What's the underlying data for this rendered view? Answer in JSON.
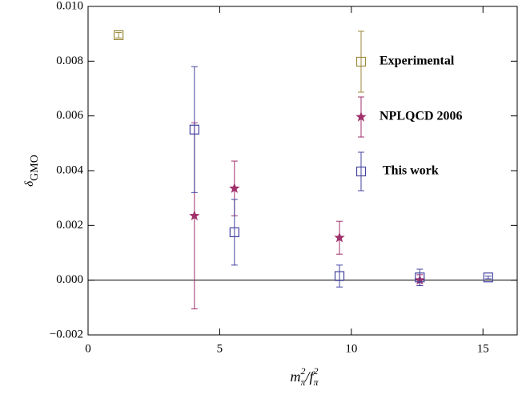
{
  "chart_data": {
    "type": "scatter",
    "xlabel": {
      "m": "m",
      "m_sup": "2",
      "m_sub": "π",
      "slash": "/",
      "f": "f",
      "f_sup": "2",
      "f_sub": "π"
    },
    "ylabel": {
      "symbol": "δ",
      "subscript": "GMO"
    },
    "xlim": [
      0,
      16.3
    ],
    "ylim": [
      -0.002,
      0.01
    ],
    "xticks": [
      0,
      5,
      10,
      15
    ],
    "yticks": [
      {
        "value": -0.002,
        "label": "−0.002"
      },
      {
        "value": 0,
        "label": "0.000"
      },
      {
        "value": 0.002,
        "label": "0.002"
      },
      {
        "value": 0.004,
        "label": "0.004"
      },
      {
        "value": 0.006,
        "label": "0.006"
      },
      {
        "value": 0.008,
        "label": "0.008"
      },
      {
        "value": 0.01,
        "label": "0.010"
      }
    ],
    "series": [
      {
        "name": "Experimental",
        "color": "#9b8a3c",
        "marker": "square",
        "x": [
          1.16
        ],
        "values": [
          0.00895
        ],
        "errors": [
          0.0001
        ]
      },
      {
        "name": "NPLQCD 2006",
        "color": "#a0306c",
        "marker": "star",
        "x": [
          4.04,
          5.56,
          9.55,
          12.6
        ],
        "values": [
          0.00235,
          0.00335,
          0.00155,
          0.0
        ],
        "errors": [
          0.0034,
          0.001,
          0.0006,
          0.0002
        ]
      },
      {
        "name": "This work",
        "color": "#4444a0",
        "marker": "square",
        "x": [
          4.04,
          5.56,
          9.55,
          12.6,
          15.2
        ],
        "values": [
          0.0055,
          0.00175,
          0.00015,
          0.0001,
          0.0001
        ],
        "errors": [
          0.0023,
          0.0012,
          0.0004,
          0.0003,
          5e-05
        ]
      }
    ]
  }
}
